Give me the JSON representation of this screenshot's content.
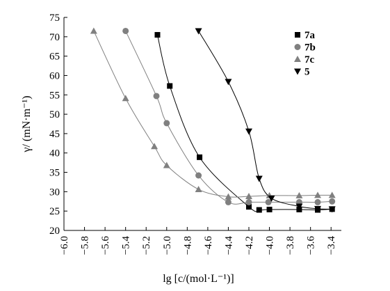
{
  "chart_data": {
    "type": "scatter",
    "xlabel": "lg [c/(mol·L⁻¹)]",
    "ylabel": "γ/ (mN·m⁻¹)",
    "xlim": [
      -6.0,
      -3.3
    ],
    "ylim": [
      20,
      75
    ],
    "x_ticks": [
      "−6.0",
      "−5.8",
      "−5.6",
      "−5.4",
      "−5.2",
      "−5.0",
      "−4.8",
      "−4.6",
      "−4.4",
      "−4.2",
      "−4.0",
      "−3.8",
      "−3.6",
      "−3.4"
    ],
    "y_ticks": [
      "20",
      "25",
      "30",
      "35",
      "40",
      "45",
      "50",
      "55",
      "60",
      "65",
      "70",
      "75"
    ],
    "grid": false,
    "legend_position": "top-right",
    "series": [
      {
        "name": "7a",
        "marker": "square",
        "color": "#000000",
        "line_color": "#000000",
        "points": [
          [
            -5.09,
            70.5
          ],
          [
            -4.97,
            57.3
          ],
          [
            -4.68,
            38.9
          ],
          [
            -4.2,
            26.1
          ],
          [
            -4.1,
            25.3
          ],
          [
            -4.0,
            25.4
          ],
          [
            -3.71,
            25.4
          ],
          [
            -3.53,
            25.3
          ],
          [
            -3.39,
            25.5
          ]
        ]
      },
      {
        "name": "7b",
        "marker": "circle",
        "color": "#808080",
        "line_color": "#808080",
        "points": [
          [
            -5.4,
            71.5
          ],
          [
            -5.1,
            54.7
          ],
          [
            -5.0,
            47.7
          ],
          [
            -4.69,
            34.2
          ],
          [
            -4.4,
            27.3
          ],
          [
            -4.2,
            27.3
          ],
          [
            -4.01,
            27.3
          ],
          [
            -3.71,
            27.3
          ],
          [
            -3.53,
            27.3
          ],
          [
            -3.39,
            27.5
          ]
        ]
      },
      {
        "name": "7c",
        "marker": "triangle-up",
        "color": "#808080",
        "line_color": "#808080",
        "points": [
          [
            -5.71,
            71.5
          ],
          [
            -5.4,
            54.1
          ],
          [
            -5.12,
            41.7
          ],
          [
            -5.0,
            36.8
          ],
          [
            -4.69,
            30.6
          ],
          [
            -4.4,
            28.7
          ],
          [
            -4.2,
            28.8
          ],
          [
            -4.0,
            29.0
          ],
          [
            -3.71,
            29.0
          ],
          [
            -3.53,
            29.1
          ],
          [
            -3.39,
            29.1
          ]
        ]
      },
      {
        "name": "5",
        "marker": "triangle-down",
        "color": "#000000",
        "line_color": "#000000",
        "points": [
          [
            -4.69,
            71.5
          ],
          [
            -4.4,
            58.4
          ],
          [
            -4.2,
            45.6
          ],
          [
            -4.1,
            33.4
          ],
          [
            -3.98,
            28.3
          ],
          [
            -3.71,
            26.2
          ],
          [
            -3.53,
            25.6
          ],
          [
            -3.39,
            25.5
          ]
        ]
      }
    ]
  }
}
